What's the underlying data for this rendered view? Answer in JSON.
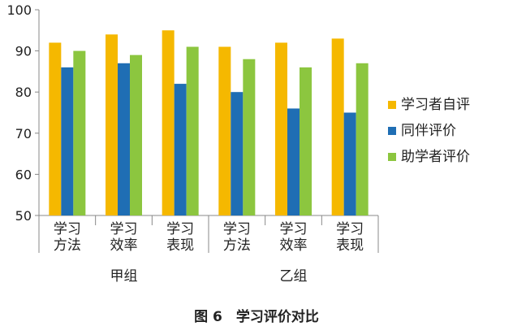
{
  "chart_data": {
    "type": "bar",
    "categories": [
      [
        "学习",
        "方法"
      ],
      [
        "学习",
        "效率"
      ],
      [
        "学习",
        "表现"
      ],
      [
        "学习",
        "方法"
      ],
      [
        "学习",
        "效率"
      ],
      [
        "学习",
        "表现"
      ]
    ],
    "groups": [
      {
        "label": "甲组",
        "categories": [
          0,
          1,
          2
        ]
      },
      {
        "label": "乙组",
        "categories": [
          3,
          4,
          5
        ]
      }
    ],
    "series": [
      {
        "name": "学习者自评",
        "color": "#F5B800",
        "values": [
          92,
          94,
          95,
          91,
          92,
          93
        ]
      },
      {
        "name": "同伴评价",
        "color": "#1F6EB4",
        "values": [
          86,
          87,
          82,
          80,
          76,
          75
        ]
      },
      {
        "name": "助学者评价",
        "color": "#8CC63F",
        "values": [
          90,
          89,
          91,
          88,
          86,
          87
        ]
      }
    ],
    "yticks": [
      50,
      60,
      70,
      80,
      90,
      100
    ],
    "ylim": [
      50,
      100
    ],
    "grid": false,
    "legend": "right",
    "caption": "图 6　学习评价对比"
  }
}
